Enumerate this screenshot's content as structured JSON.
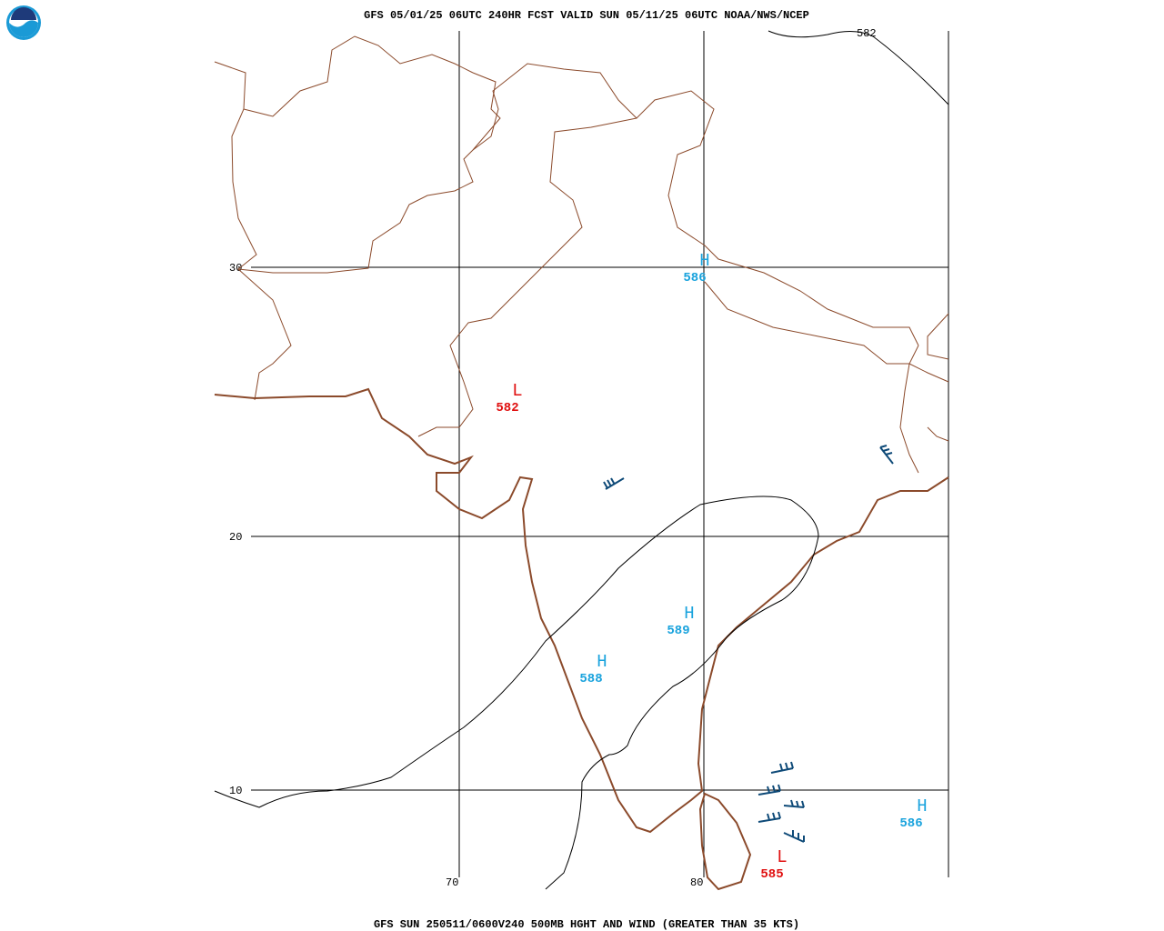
{
  "header": {
    "title": "GFS 05/01/25 06UTC 240HR FCST VALID SUN 05/11/25 06UTC NOAA/NWS/NCEP"
  },
  "footer": {
    "caption": "GFS SUN 250511/0600V240 500MB HGHT AND WIND (GREATER THAN 35 KTS)"
  },
  "grid": {
    "latitudes": [
      "30",
      "20",
      "10"
    ],
    "longitudes": [
      "70",
      "80"
    ]
  },
  "contour_labels": [
    "582"
  ],
  "centers": [
    {
      "symbol": "H",
      "value": "586"
    },
    {
      "symbol": "L",
      "value": "582"
    },
    {
      "symbol": "H",
      "value": "589"
    },
    {
      "symbol": "H",
      "value": "588"
    },
    {
      "symbol": "H",
      "value": "586"
    },
    {
      "symbol": "L",
      "value": "585"
    }
  ]
}
